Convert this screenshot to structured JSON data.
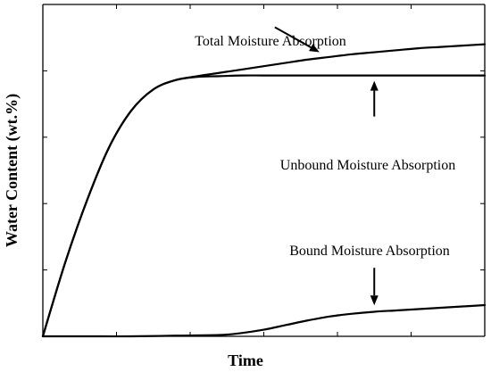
{
  "chart_data": {
    "type": "line",
    "title": "",
    "xlabel": "Time",
    "ylabel": "Water Content (wt.%)",
    "xlim": [
      0,
      10
    ],
    "ylim": [
      0,
      5
    ],
    "grid": false,
    "x_tick_count": 6,
    "y_tick_count": 5,
    "series": [
      {
        "x": [
          0,
          0.5,
          1,
          1.5,
          2,
          2.5,
          3,
          3.5,
          4,
          4.5,
          5,
          5.5,
          6,
          6.5,
          7,
          7.5,
          8,
          8.5,
          9,
          9.5,
          10
        ],
        "values": [
          0,
          1.1,
          2.05,
          2.85,
          3.4,
          3.72,
          3.86,
          3.92,
          3.97,
          4.02,
          4.07,
          4.12,
          4.17,
          4.21,
          4.25,
          4.28,
          4.31,
          4.34,
          4.36,
          4.38,
          4.4
        ],
        "color": "#000000"
      },
      {
        "x": [
          0,
          0.5,
          1,
          1.5,
          2,
          2.5,
          3,
          3.5,
          4,
          4.5,
          5,
          5.5,
          6,
          6.5,
          7,
          7.5,
          8,
          8.5,
          9,
          9.5,
          10
        ],
        "values": [
          0,
          1.1,
          2.05,
          2.85,
          3.4,
          3.72,
          3.86,
          3.91,
          3.92,
          3.93,
          3.93,
          3.93,
          3.93,
          3.93,
          3.93,
          3.93,
          3.93,
          3.93,
          3.93,
          3.93,
          3.93
        ],
        "color": "#000000"
      },
      {
        "x": [
          0,
          1,
          2,
          3,
          4,
          4.5,
          5,
          5.5,
          6,
          6.5,
          7,
          7.5,
          8,
          8.5,
          9,
          9.5,
          10
        ],
        "values": [
          0,
          0,
          0,
          0.01,
          0.02,
          0.05,
          0.1,
          0.17,
          0.24,
          0.3,
          0.34,
          0.37,
          0.39,
          0.41,
          0.43,
          0.45,
          0.47
        ],
        "color": "#000000"
      }
    ],
    "annotations": [
      {
        "text": "Total Moisture Absorption",
        "arrow_x": 6.3,
        "arrow_y": 4.2,
        "direction": "down-right"
      },
      {
        "text": "Unbound Moisture Absorption",
        "arrow_x": 7.5,
        "arrow_y": 3.93,
        "direction": "up"
      },
      {
        "text": "Bound Moisture Absorption",
        "arrow_x": 7.5,
        "arrow_y": 0.36,
        "direction": "down"
      }
    ]
  }
}
